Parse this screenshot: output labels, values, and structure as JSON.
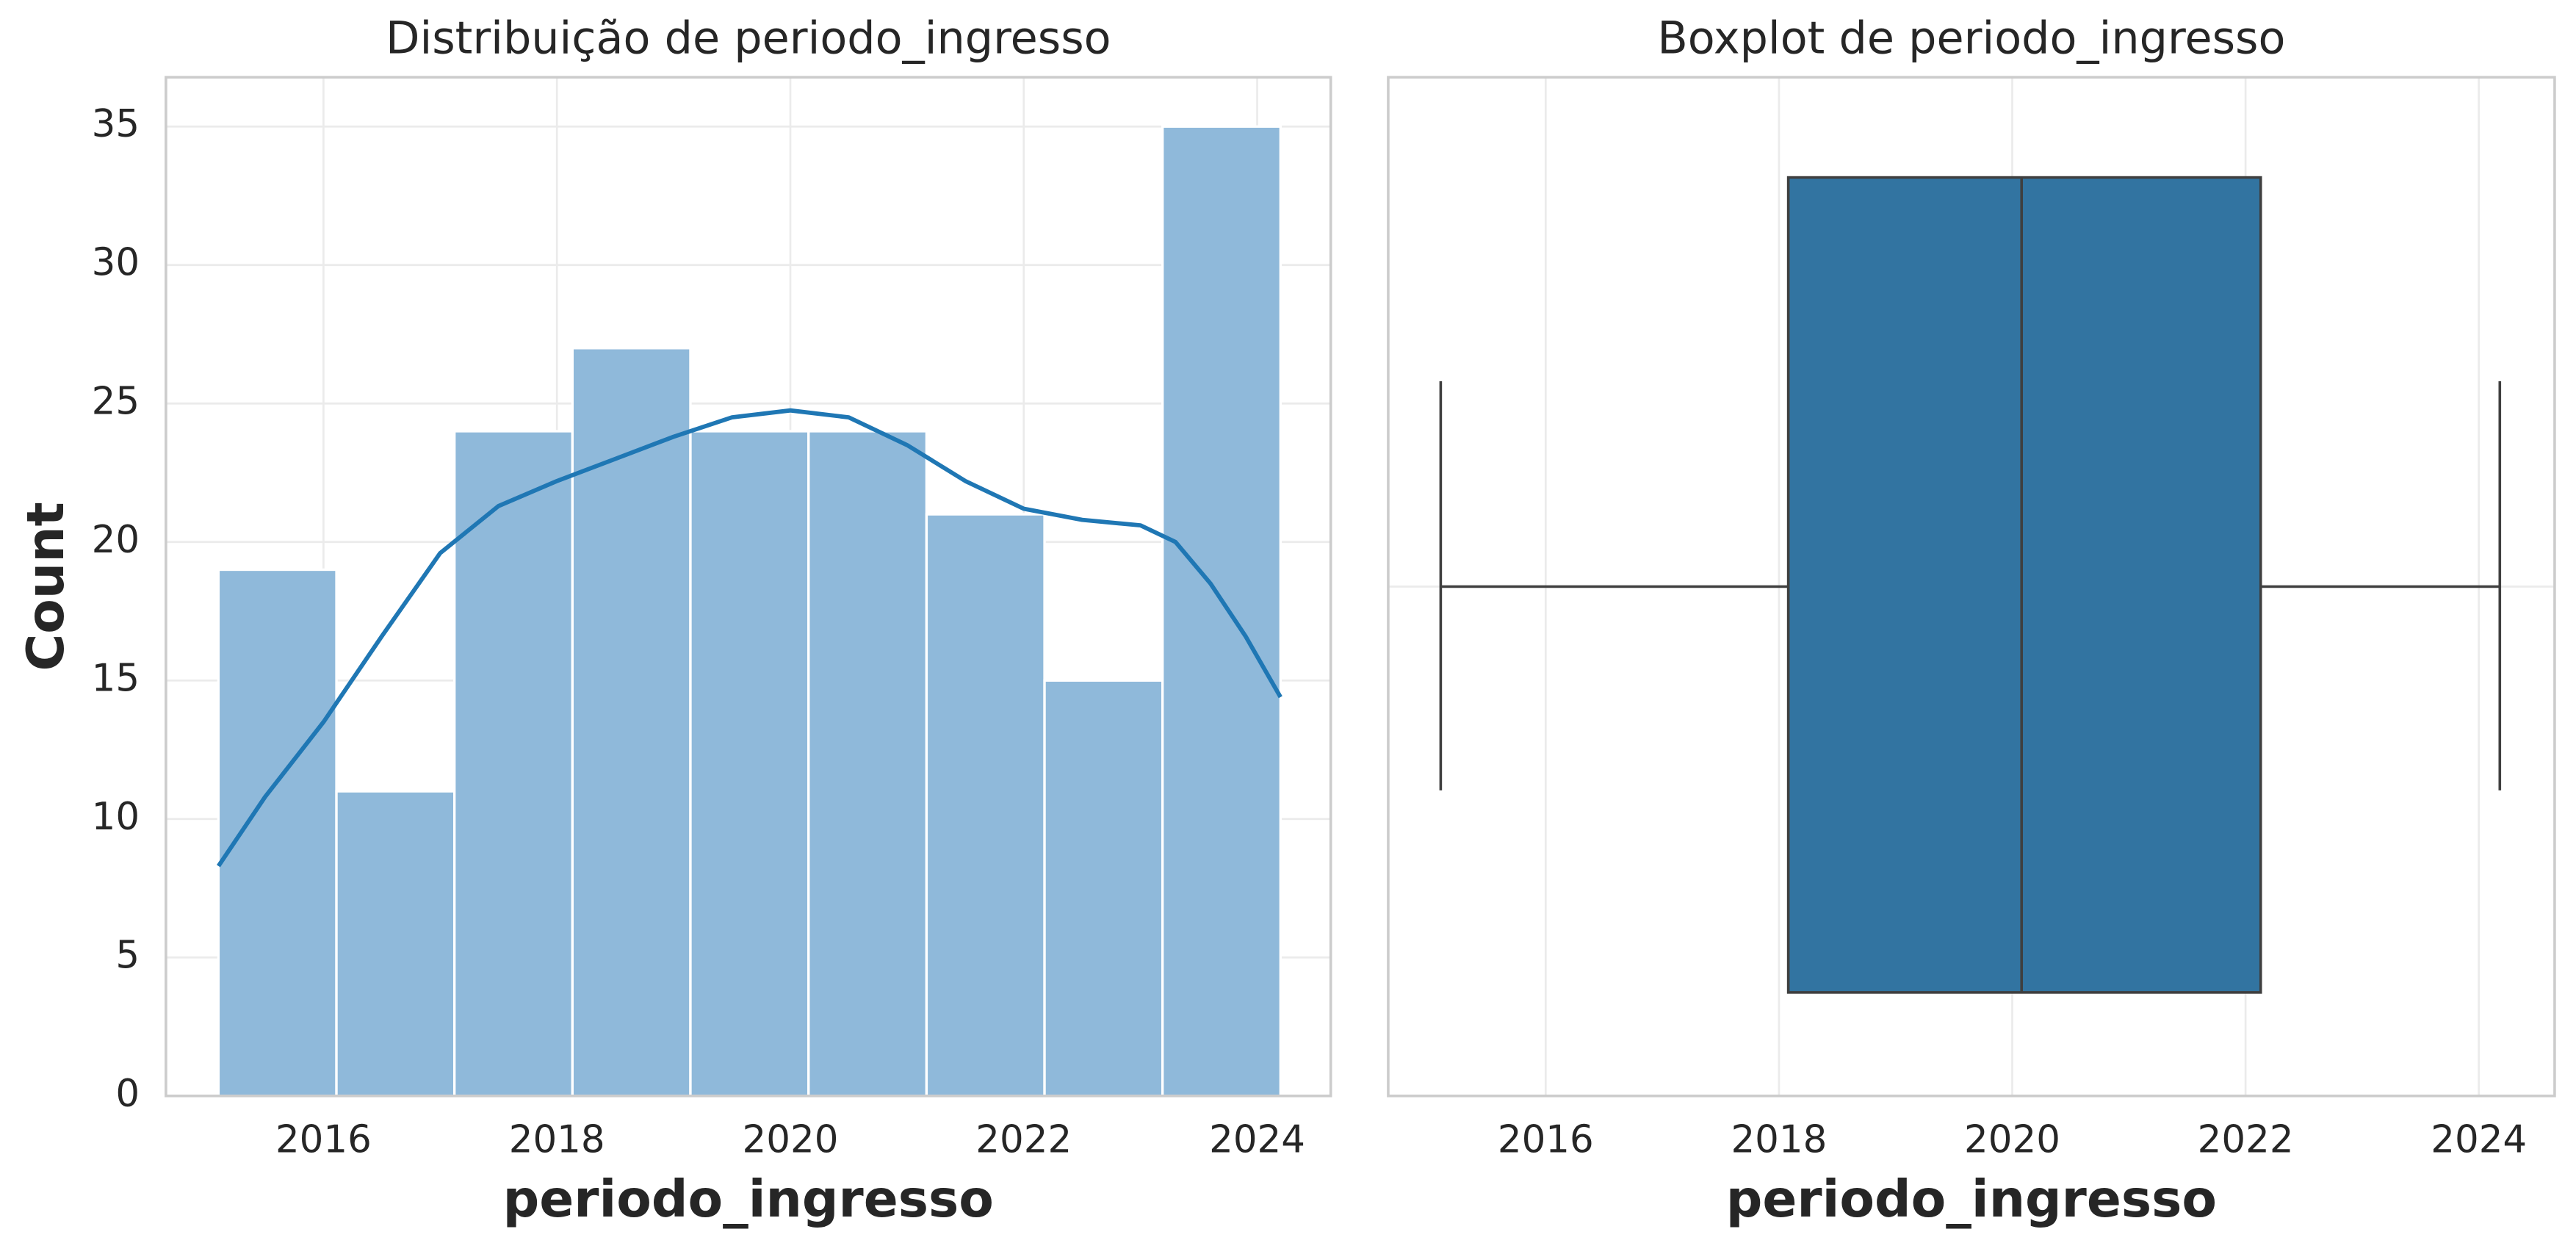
{
  "chart_data": [
    {
      "type": "histogram",
      "title": "Distribuição de periodo_ingresso",
      "xlabel": "periodo_ingresso",
      "ylabel": "Count",
      "bins": [
        2015.1,
        2016.111,
        2017.122,
        2018.133,
        2019.144,
        2020.156,
        2021.167,
        2022.178,
        2023.189,
        2024.2
      ],
      "counts": [
        19,
        11,
        24,
        27,
        24,
        24,
        21,
        15,
        35
      ],
      "color": "#8fb9da",
      "edge_color": "#ffffff",
      "kde": {
        "color": "#1f77b4",
        "x": [
          2015.1,
          2015.5,
          2016.0,
          2016.5,
          2017.0,
          2017.5,
          2018.0,
          2018.5,
          2019.0,
          2019.5,
          2020.0,
          2020.5,
          2021.0,
          2021.5,
          2022.0,
          2022.5,
          2023.0,
          2023.3,
          2023.6,
          2023.9,
          2024.2
        ],
        "values": [
          8.3,
          10.8,
          13.5,
          16.6,
          19.6,
          21.3,
          22.2,
          23.0,
          23.8,
          24.5,
          24.75,
          24.5,
          23.5,
          22.2,
          21.2,
          20.8,
          20.6,
          20.0,
          18.5,
          16.6,
          14.4
        ]
      },
      "xlim": [
        2014.65,
        2024.63
      ],
      "ylim": [
        0,
        36.78
      ],
      "xticks": [
        2016,
        2018,
        2020,
        2022,
        2024
      ],
      "yticks": [
        0,
        5,
        10,
        15,
        20,
        25,
        30,
        35
      ],
      "grid": true
    },
    {
      "type": "box",
      "title": "Boxplot de periodo_ingresso",
      "xlabel": "periodo_ingresso",
      "min": 2015.1,
      "q1": 2018.08,
      "median": 2020.08,
      "q3": 2022.13,
      "max": 2024.18,
      "color": "#3274a1",
      "edge_color": "#3f3f3f",
      "xlim": [
        2014.65,
        2024.65
      ],
      "xticks": [
        2016,
        2018,
        2020,
        2022,
        2024
      ],
      "grid": true
    }
  ]
}
